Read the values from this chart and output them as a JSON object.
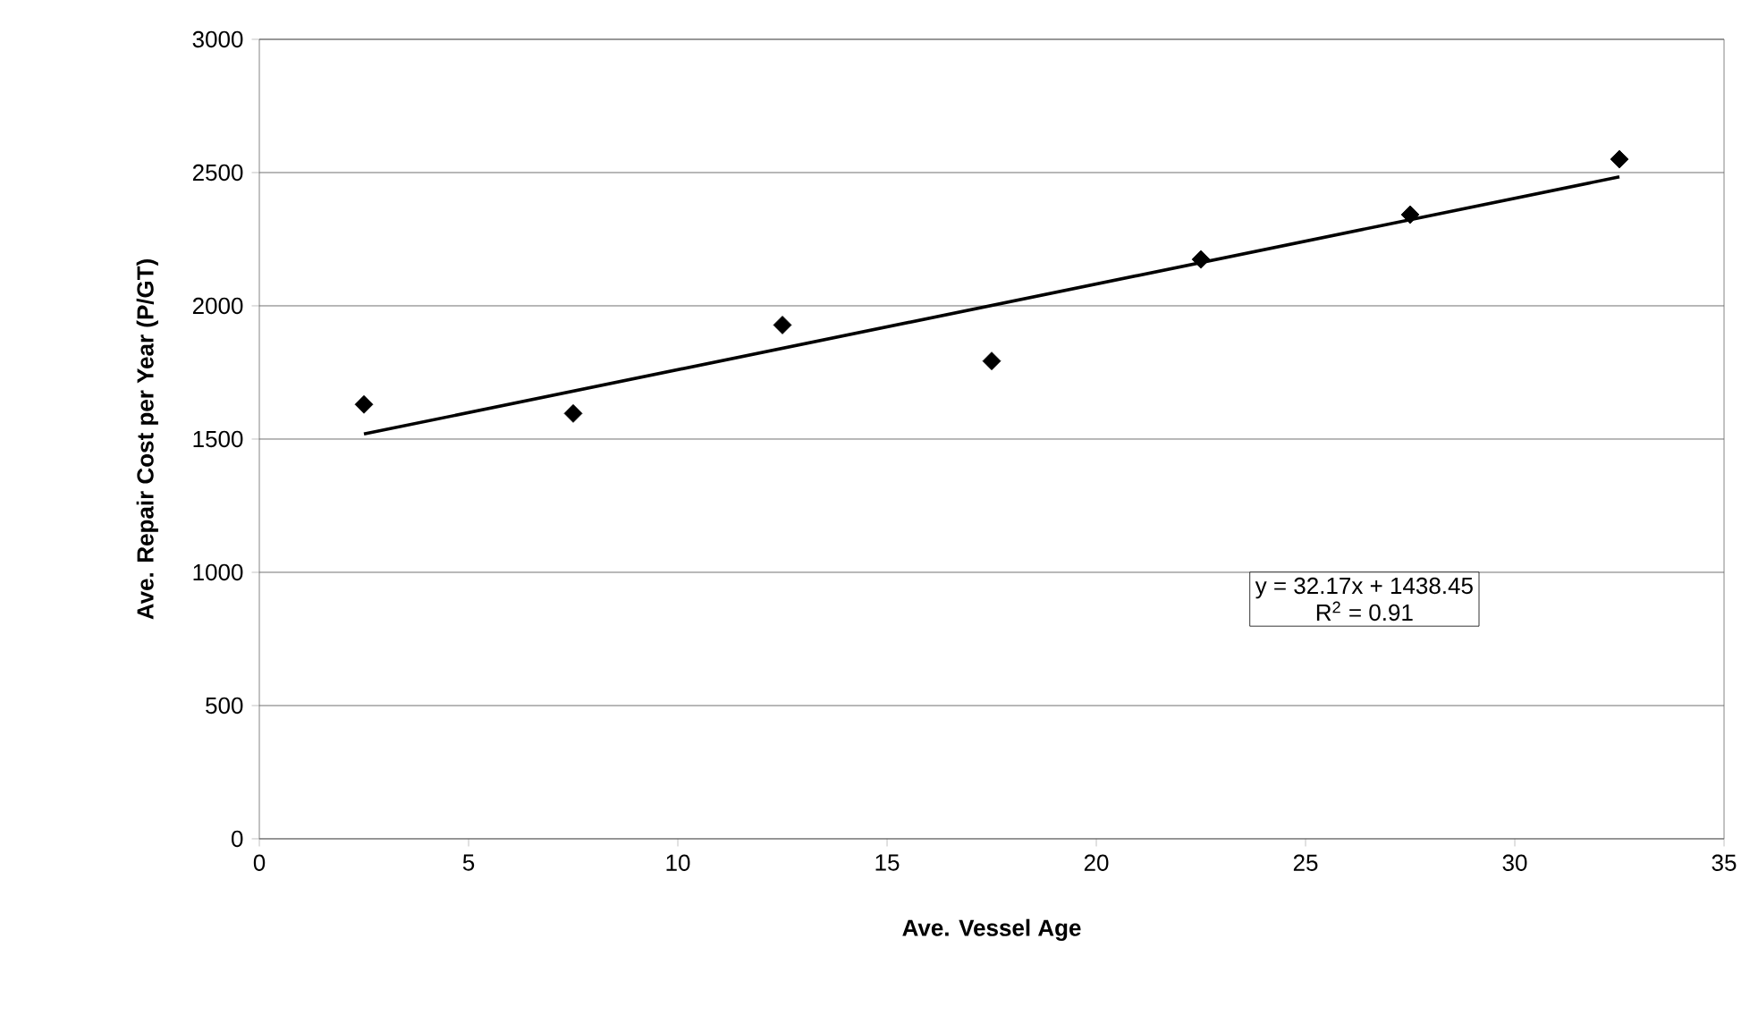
{
  "chart_data": {
    "type": "scatter",
    "xlabel": "Ave. Vessel Age",
    "ylabel": "Ave. Repair Cost per Year  (P/GT)",
    "series": [
      {
        "marker": "diamond",
        "color": "#000000",
        "x": [
          2.5,
          7.5,
          12.5,
          17.5,
          22.5,
          27.5,
          32.5
        ],
        "values": [
          1630,
          1596,
          1928,
          1793,
          2174,
          2342,
          2550
        ]
      },
      {
        "type": "line",
        "marker": "none",
        "color": "#000000",
        "x": [
          2.5,
          32.5
        ],
        "values": [
          1519,
          2484
        ]
      }
    ],
    "grid": "y",
    "xlim": [
      0,
      35
    ],
    "xticks": [
      0,
      5,
      10,
      15,
      20,
      25,
      30,
      35
    ],
    "ylim": [
      0,
      3000
    ],
    "yticks": [
      0,
      500,
      1000,
      1500,
      2000,
      2500,
      3000
    ],
    "annotations": [
      "y = 32.17x + 1438.45",
      "R$^{2}$ = 0.91"
    ]
  }
}
